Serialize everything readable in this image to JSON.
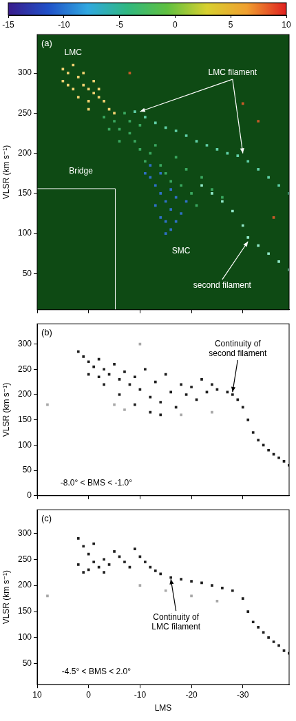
{
  "colorbar": {
    "range": [
      -15,
      10
    ],
    "ticks": [
      -15,
      -10,
      -5,
      0,
      5,
      10
    ]
  },
  "chart_data": [
    {
      "type": "scatter",
      "panel": "(a)",
      "ylabel": "VLSR (km s⁻¹)",
      "xlim": [
        10,
        -39
      ],
      "ylim": [
        5,
        348
      ],
      "xticks": [
        10,
        0,
        -10,
        -20,
        -30
      ],
      "yticks": [
        50,
        100,
        150,
        200,
        250,
        300
      ],
      "tick_labels": "y",
      "grid": false,
      "series": [
        {
          "color": "#f0d070",
          "values": [
            [
              5,
              290
            ],
            [
              4,
              300
            ],
            [
              3,
              310
            ],
            [
              2,
              295
            ],
            [
              1,
              285
            ],
            [
              0,
              280
            ],
            [
              -1,
              275
            ],
            [
              -2,
              270
            ],
            [
              3,
              280
            ],
            [
              2,
              270
            ],
            [
              0,
              265
            ],
            [
              -3,
              265
            ],
            [
              -4,
              255
            ],
            [
              4,
              285
            ],
            [
              1,
              300
            ],
            [
              -1,
              290
            ],
            [
              5,
              305
            ],
            [
              -2,
              280
            ],
            [
              0,
              255
            ],
            [
              -5,
              250
            ]
          ]
        },
        {
          "color": "#3aa860",
          "values": [
            [
              -3,
              245
            ],
            [
              -5,
              240
            ],
            [
              -6,
              230
            ],
            [
              -8,
              225
            ],
            [
              -7,
              250
            ],
            [
              -9,
              215
            ],
            [
              -10,
              205
            ],
            [
              -12,
              200
            ],
            [
              -11,
              190
            ],
            [
              -14,
              185
            ],
            [
              -15,
              175
            ],
            [
              -13,
              210
            ],
            [
              -16,
              165
            ],
            [
              -18,
              160
            ],
            [
              -20,
              150
            ],
            [
              -17,
              195
            ],
            [
              -19,
              180
            ],
            [
              -22,
              170
            ],
            [
              -24,
              155
            ],
            [
              -26,
              145
            ],
            [
              -21,
              135
            ],
            [
              -8,
              240
            ],
            [
              -4,
              230
            ],
            [
              -6,
              215
            ],
            [
              -10,
              235
            ]
          ]
        },
        {
          "color": "#3070c8",
          "values": [
            [
              -12,
              170
            ],
            [
              -13,
              160
            ],
            [
              -14,
              150
            ],
            [
              -15,
              140
            ],
            [
              -16,
              130
            ],
            [
              -15,
              115
            ],
            [
              -16,
              105
            ],
            [
              -14,
              120
            ],
            [
              -13,
              135
            ],
            [
              -17,
              145
            ],
            [
              -18,
              125
            ],
            [
              -15,
              100
            ],
            [
              -12,
              185
            ],
            [
              -11,
              175
            ],
            [
              -17,
              115
            ],
            [
              -14,
              175
            ],
            [
              -16,
              155
            ],
            [
              -19,
              140
            ]
          ]
        },
        {
          "color": "#60d0a8",
          "values": [
            [
              -9,
              252
            ],
            [
              -11,
              245
            ],
            [
              -13,
              238
            ],
            [
              -15,
              232
            ],
            [
              -17,
              228
            ],
            [
              -19,
              222
            ],
            [
              -21,
              215
            ],
            [
              -23,
              210
            ],
            [
              -25,
              205
            ],
            [
              -27,
              200
            ],
            [
              -29,
              197
            ],
            [
              -31,
              190
            ],
            [
              -33,
              180
            ],
            [
              -35,
              170
            ],
            [
              -37,
              160
            ],
            [
              -39,
              150
            ]
          ]
        },
        {
          "color": "#90e8c8",
          "values": [
            [
              -22,
              160
            ],
            [
              -24,
              150
            ],
            [
              -26,
              140
            ],
            [
              -28,
              128
            ],
            [
              -30,
              110
            ],
            [
              -31,
              95
            ],
            [
              -33,
              85
            ],
            [
              -35,
              75
            ],
            [
              -37,
              65
            ],
            [
              -39,
              55
            ]
          ]
        },
        {
          "color": "#c85a28",
          "values": [
            [
              -30,
              262
            ],
            [
              -33,
              240
            ],
            [
              -8,
              300
            ],
            [
              -36,
              120
            ]
          ]
        }
      ],
      "annotations": [
        {
          "text": "LMC",
          "x": 3,
          "y": 325,
          "arrows": []
        },
        {
          "text": "LMC filament",
          "x": -28,
          "y": 300,
          "arrows": [
            [
              -10,
              252
            ],
            [
              -30,
              200
            ]
          ]
        },
        {
          "text": "Bridge",
          "x": 1.5,
          "y": 178,
          "arrows": []
        },
        {
          "text": "SMC",
          "x": -18,
          "y": 78,
          "arrows": []
        },
        {
          "text": "second filament",
          "x": -26,
          "y": 35,
          "arrows": [
            [
              -31,
              90
            ]
          ]
        }
      ]
    },
    {
      "type": "scatter",
      "panel": "(b)",
      "ylabel": "VLSR (km s⁻¹)",
      "xlim": [
        10,
        -39
      ],
      "ylim": [
        0,
        340
      ],
      "xticks": [
        10,
        0,
        -10,
        -20,
        -30
      ],
      "yticks": [
        0,
        50,
        100,
        150,
        200,
        250,
        300
      ],
      "tick_labels": "y",
      "grid": false,
      "series": [
        {
          "color": "#1e1e1e",
          "values": [
            [
              2,
              285
            ],
            [
              1,
              275
            ],
            [
              0,
              265
            ],
            [
              -1,
              255
            ],
            [
              -2,
              270
            ],
            [
              -3,
              250
            ],
            [
              -4,
              240
            ],
            [
              -5,
              260
            ],
            [
              -6,
              230
            ],
            [
              -7,
              245
            ],
            [
              -8,
              220
            ],
            [
              -9,
              235
            ],
            [
              -10,
              210
            ],
            [
              -11,
              250
            ],
            [
              -12,
              195
            ],
            [
              -13,
              225
            ],
            [
              -14,
              185
            ],
            [
              -15,
              240
            ],
            [
              -16,
              205
            ],
            [
              -17,
              175
            ],
            [
              -18,
              220
            ],
            [
              -19,
              200
            ],
            [
              -20,
              215
            ],
            [
              -21,
              190
            ],
            [
              -22,
              230
            ],
            [
              -23,
              205
            ],
            [
              -24,
              220
            ],
            [
              -25,
              210
            ],
            [
              -3,
              220
            ],
            [
              -6,
              200
            ],
            [
              -9,
              180
            ],
            [
              -12,
              165
            ],
            [
              -14,
              160
            ],
            [
              -2,
              235
            ],
            [
              0,
              240
            ],
            [
              -27,
              205
            ],
            [
              -28,
              200
            ],
            [
              -29,
              190
            ],
            [
              -30,
              175
            ],
            [
              -31,
              150
            ],
            [
              -32,
              125
            ],
            [
              -33,
              110
            ],
            [
              -34,
              100
            ],
            [
              -35,
              90
            ],
            [
              -36,
              82
            ],
            [
              -37,
              75
            ],
            [
              -38,
              68
            ],
            [
              -39,
              60
            ]
          ]
        },
        {
          "color": "#a8a8a8",
          "values": [
            [
              -5,
              180
            ],
            [
              -10,
              300
            ],
            [
              8,
              180
            ],
            [
              -24,
              165
            ],
            [
              -18,
              160
            ],
            [
              -7,
              170
            ]
          ]
        }
      ],
      "annotations": [
        {
          "text": "Continuity of\nsecond filament",
          "x": -29,
          "y": 290,
          "arrows": [
            [
              -28,
              205
            ]
          ]
        },
        {
          "text": "-8.0° < BMS < -1.0°",
          "x": -1.5,
          "y": 25,
          "arrows": []
        }
      ]
    },
    {
      "type": "scatter",
      "panel": "(c)",
      "ylabel": "VLSR (km s⁻¹)",
      "xlabel": "LMS",
      "xlim": [
        10,
        -39
      ],
      "ylim": [
        10,
        345
      ],
      "xticks": [
        10,
        0,
        -10,
        -20,
        -30
      ],
      "yticks": [
        50,
        100,
        150,
        200,
        250,
        300
      ],
      "grid": false,
      "series": [
        {
          "color": "#1e1e1e",
          "values": [
            [
              2,
              290
            ],
            [
              1,
              275
            ],
            [
              0,
              260
            ],
            [
              -1,
              245
            ],
            [
              -2,
              235
            ],
            [
              0,
              230
            ],
            [
              2,
              240
            ],
            [
              1,
              225
            ],
            [
              -3,
              250
            ],
            [
              -4,
              240
            ],
            [
              -5,
              265
            ],
            [
              -6,
              255
            ],
            [
              -7,
              245
            ],
            [
              -8,
              235
            ],
            [
              -3,
              225
            ],
            [
              -1,
              280
            ],
            [
              -9,
              270
            ],
            [
              -10,
              255
            ],
            [
              -11,
              245
            ],
            [
              -12,
              235
            ],
            [
              -13,
              228
            ],
            [
              -14,
              222
            ],
            [
              -16,
              215
            ],
            [
              -18,
              212
            ],
            [
              -20,
              208
            ],
            [
              -22,
              205
            ],
            [
              -24,
              200
            ],
            [
              -26,
              195
            ],
            [
              -28,
              190
            ],
            [
              -30,
              175
            ],
            [
              -31,
              150
            ],
            [
              -32,
              130
            ],
            [
              -33,
              120
            ],
            [
              -34,
              110
            ],
            [
              -35,
              100
            ],
            [
              -36,
              92
            ],
            [
              -37,
              85
            ],
            [
              -38,
              75
            ],
            [
              -39,
              70
            ]
          ]
        },
        {
          "color": "#a8a8a8",
          "values": [
            [
              -15,
              190
            ],
            [
              -20,
              180
            ],
            [
              -10,
              200
            ],
            [
              -25,
              170
            ],
            [
              8,
              180
            ]
          ]
        }
      ],
      "annotations": [
        {
          "text": "Continuity of\nLMC filament",
          "x": -17,
          "y": 130,
          "arrows": [
            [
              -16,
              212
            ]
          ]
        },
        {
          "text": "-4.5° < BMS < 2.0°",
          "x": -1.5,
          "y": 35,
          "arrows": []
        }
      ]
    }
  ]
}
